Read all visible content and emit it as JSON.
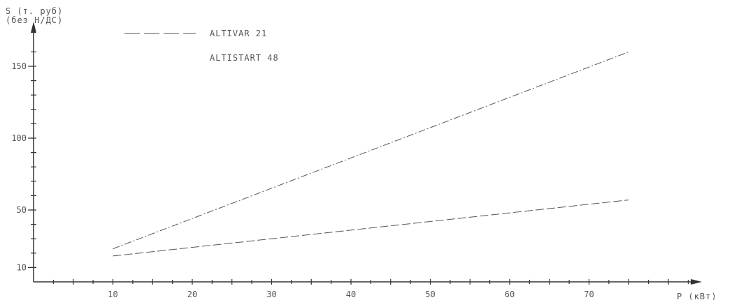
{
  "chart_data": {
    "type": "line",
    "ylabel_line1": "S (т. руб)",
    "ylabel_line2": "(без Н/ДС)",
    "xlabel": "P (кВт)",
    "x_ticks": [
      10,
      20,
      30,
      40,
      50,
      60,
      70
    ],
    "y_ticks": [
      10,
      50,
      100,
      150
    ],
    "xlim": [
      0,
      75
    ],
    "ylim": [
      0,
      165
    ],
    "series": [
      {
        "name": "ALTIVAR 21",
        "style": "dash-dot",
        "points": [
          [
            10,
            23
          ],
          [
            75,
            160
          ]
        ]
      },
      {
        "name": "ALTISTART 48",
        "style": "dashed",
        "points": [
          [
            10,
            18
          ],
          [
            75,
            57
          ]
        ]
      }
    ],
    "legend": "top-left",
    "colors": {
      "line": "#555555",
      "axis": "#333333"
    }
  }
}
